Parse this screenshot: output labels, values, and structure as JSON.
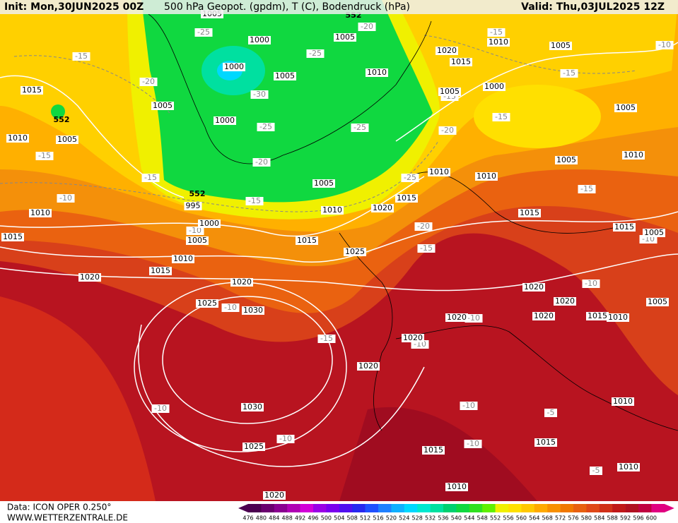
{
  "header": {
    "init": "Init: Mon,30JUN2025 00Z",
    "title": "500 hPa Geopot. (gpdm), T (C), Bodendruck (hPa)",
    "valid": "Valid: Thu,03JUL2025 12Z"
  },
  "footer": {
    "data": "Data: ICON OPER 0.250°",
    "site": "WWW.WETTERZENTRALE.DE"
  },
  "colorbar": {
    "values": [
      476,
      480,
      484,
      488,
      492,
      496,
      500,
      504,
      508,
      512,
      516,
      520,
      524,
      528,
      532,
      536,
      540,
      544,
      548,
      552,
      556,
      560,
      564,
      568,
      572,
      576,
      580,
      584,
      588,
      592,
      596,
      600
    ],
    "colors": [
      "#4c0050",
      "#6a006e",
      "#8a0090",
      "#b000b4",
      "#d200d8",
      "#9a00e6",
      "#7a00ee",
      "#5010f0",
      "#2828f0",
      "#2050ff",
      "#2080ff",
      "#10b0ff",
      "#00d8ff",
      "#00e8d0",
      "#00e0a0",
      "#00d070",
      "#10d840",
      "#30e020",
      "#60f000",
      "#f0f000",
      "#ffe000",
      "#ffc800",
      "#ffaa00",
      "#f89000",
      "#f07800",
      "#e86010",
      "#e04818",
      "#d03018",
      "#c01818",
      "#b01020",
      "#c00040",
      "#e00080"
    ]
  },
  "map_labels": {
    "pressure": [
      1005,
      1000,
      1005,
      1020,
      1015,
      1010,
      1005,
      1015,
      1000,
      1005,
      1010,
      1005,
      1000,
      1005,
      1005,
      1000,
      1010,
      1005,
      1005,
      1010,
      1010,
      1010,
      1005,
      995,
      1015,
      1020,
      1010,
      1015,
      1010,
      1000,
      1015,
      1005,
      1015,
      1005,
      1015,
      1025,
      1010,
      1015,
      1020,
      1020,
      1020,
      1025,
      1030,
      1020,
      1015,
      1010,
      1005,
      1020,
      1020,
      1020,
      1020,
      1030,
      1010,
      1025,
      1015,
      1015,
      1010,
      1010,
      1020
    ],
    "temperature": [
      -25,
      -20,
      -15,
      -15,
      -20,
      -25,
      -30,
      -15,
      -25,
      -25,
      -20,
      -15,
      -15,
      -20,
      -15,
      -10,
      -15,
      -25,
      -15,
      -10,
      -15,
      -10,
      -20,
      -15,
      -10,
      -10,
      -10,
      -10,
      -10,
      -15,
      -10,
      -10,
      -5,
      -10,
      -10,
      -5
    ],
    "height": [
      552,
      552,
      552
    ]
  }
}
